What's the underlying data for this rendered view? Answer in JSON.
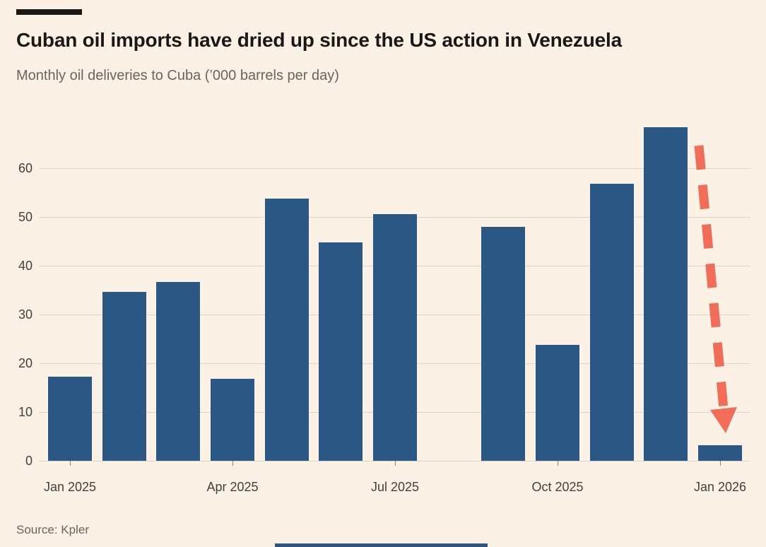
{
  "page": {
    "background": "#FCF1E5"
  },
  "header": {
    "title": "Cuban oil imports have dried up since the US action in Venezuela",
    "subtitle": "Monthly oil deliveries to Cuba (’000 barrels per day)"
  },
  "footer": {
    "source": "Source: Kpler"
  },
  "chart_data": {
    "type": "bar",
    "title": "Cuban oil imports have dried up since the US action in Venezuela",
    "subtitle": "Monthly oil deliveries to Cuba (’000 barrels per day)",
    "unit": "’000 barrels per day",
    "categories": [
      "Jan 2025",
      "Feb 2025",
      "Mar 2025",
      "Apr 2025",
      "May 2025",
      "Jun 2025",
      "Jul 2025",
      "Aug 2025",
      "Sep 2025",
      "Oct 2025",
      "Nov 2025",
      "Dec 2025",
      "Jan 2026"
    ],
    "values": [
      17.2,
      34.6,
      36.6,
      16.8,
      53.7,
      44.8,
      50.6,
      null,
      47.9,
      23.8,
      56.8,
      68.4,
      3.2
    ],
    "x_tick_labels": [
      "Jan 2025",
      "Apr 2025",
      "Jul 2025",
      "Oct 2025",
      "Jan 2026"
    ],
    "x_tick_indices": [
      0,
      3,
      6,
      9,
      12
    ],
    "y_ticks": [
      0,
      10,
      20,
      30,
      40,
      50,
      60
    ],
    "ylim": [
      0,
      72
    ],
    "grid": true,
    "legend": false,
    "bar_color": "#2A5784",
    "axis_label_color": "#42403E",
    "annotation": {
      "type": "arrow-down-dashed",
      "description": "Thick dashed red arrow pointing down at the near-zero Jan 2026 bar",
      "color": "#F05B45"
    }
  }
}
